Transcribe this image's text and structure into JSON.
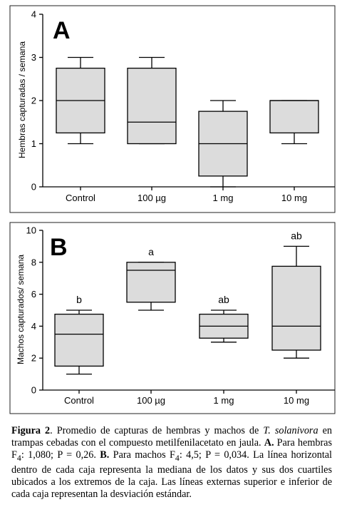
{
  "chart_data": [
    {
      "type": "box",
      "panel": "A",
      "ylabel": "Hembras capturadas / semana",
      "ylim": [
        0,
        4
      ],
      "yticks": [
        0,
        1,
        2,
        3,
        4
      ],
      "categories": [
        "Control",
        "100 µg",
        "1 mg",
        "10 mg"
      ],
      "boxes": [
        {
          "min": 1,
          "q1": 1.25,
          "median": 2,
          "q3": 2.75,
          "max": 3,
          "label": ""
        },
        {
          "min": 1,
          "q1": 1,
          "median": 1.5,
          "q3": 2.75,
          "max": 3,
          "label": ""
        },
        {
          "min": 0,
          "q1": 0.25,
          "median": 1,
          "q3": 1.75,
          "max": 2,
          "label": ""
        },
        {
          "min": 1,
          "q1": 1.25,
          "median": 2,
          "q3": 2,
          "max": 2,
          "label": ""
        }
      ]
    },
    {
      "type": "box",
      "panel": "B",
      "ylabel": "Machos capturados/ semana",
      "ylim": [
        0,
        10
      ],
      "yticks": [
        0,
        2,
        4,
        6,
        8,
        10
      ],
      "categories": [
        "Control",
        "100 µg",
        "1 mg",
        "10 mg"
      ],
      "boxes": [
        {
          "min": 1,
          "q1": 1.5,
          "median": 3.5,
          "q3": 4.75,
          "max": 5,
          "label": "b"
        },
        {
          "min": 5,
          "q1": 5.5,
          "median": 7.5,
          "q3": 8,
          "max": 8,
          "label": "a"
        },
        {
          "min": 3,
          "q1": 3.25,
          "median": 4,
          "q3": 4.75,
          "max": 5,
          "label": "ab"
        },
        {
          "min": 2,
          "q1": 2.5,
          "median": 4,
          "q3": 7.75,
          "max": 9,
          "label": "ab"
        }
      ]
    }
  ],
  "caption": {
    "fig_label": "Figura 2",
    "text_1": ". Promedio de capturas de hembras y machos de ",
    "species": "T. solanivora",
    "text_2": " en trampas cebadas con el compuesto metilfenilacetato en jaula. ",
    "a_label": "A.",
    "text_3": " Para hembras F",
    "sub_a": "4",
    "text_4": ": 1,080; P = 0,26. ",
    "b_label": "B.",
    "text_5": " Para machos F",
    "sub_b": "4",
    "text_6": ": 4,5; P = 0,034. La línea horizontal dentro de cada caja representa la mediana de los datos y sus dos cuartiles ubicados a los extremos de la caja. Las líneas externas superior e inferior de cada caja representan la desviación estándar."
  }
}
